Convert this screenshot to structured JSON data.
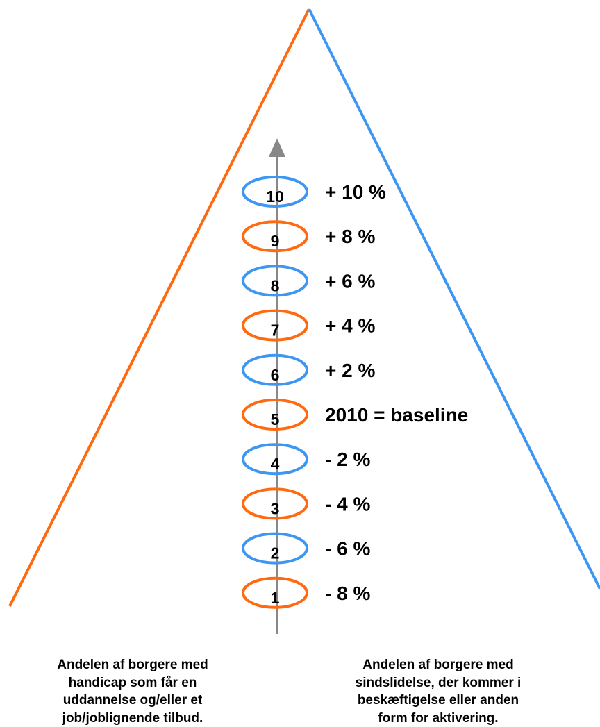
{
  "colors": {
    "orange": "#ff6a10",
    "blue": "#3d97f2",
    "arrow": "#888888"
  },
  "levels": [
    {
      "number": "10",
      "label": "+ 10 %",
      "color": "blue"
    },
    {
      "number": "9",
      "label": "+ 8 %",
      "color": "orange"
    },
    {
      "number": "8",
      "label": "+ 6 %",
      "color": "blue"
    },
    {
      "number": "7",
      "label": "+ 4 %",
      "color": "orange"
    },
    {
      "number": "6",
      "label": "+ 2 %",
      "color": "blue"
    },
    {
      "number": "5",
      "label": "2010 = baseline",
      "color": "orange"
    },
    {
      "number": "4",
      "label": "- 2 %",
      "color": "blue"
    },
    {
      "number": "3",
      "label": "- 4 %",
      "color": "orange"
    },
    {
      "number": "2",
      "label": "- 6 %",
      "color": "blue"
    },
    {
      "number": "1",
      "label": "- 8 %",
      "color": "orange"
    }
  ],
  "captions": {
    "left": [
      "Andelen af borgere med",
      "handicap som får en",
      "uddannelse og/eller et",
      "job/joblignende tilbud."
    ],
    "right": [
      "Andelen af borgere med",
      "sindslidelse, der kommer i",
      "beskæftigelse eller anden",
      "form for aktivering."
    ]
  }
}
